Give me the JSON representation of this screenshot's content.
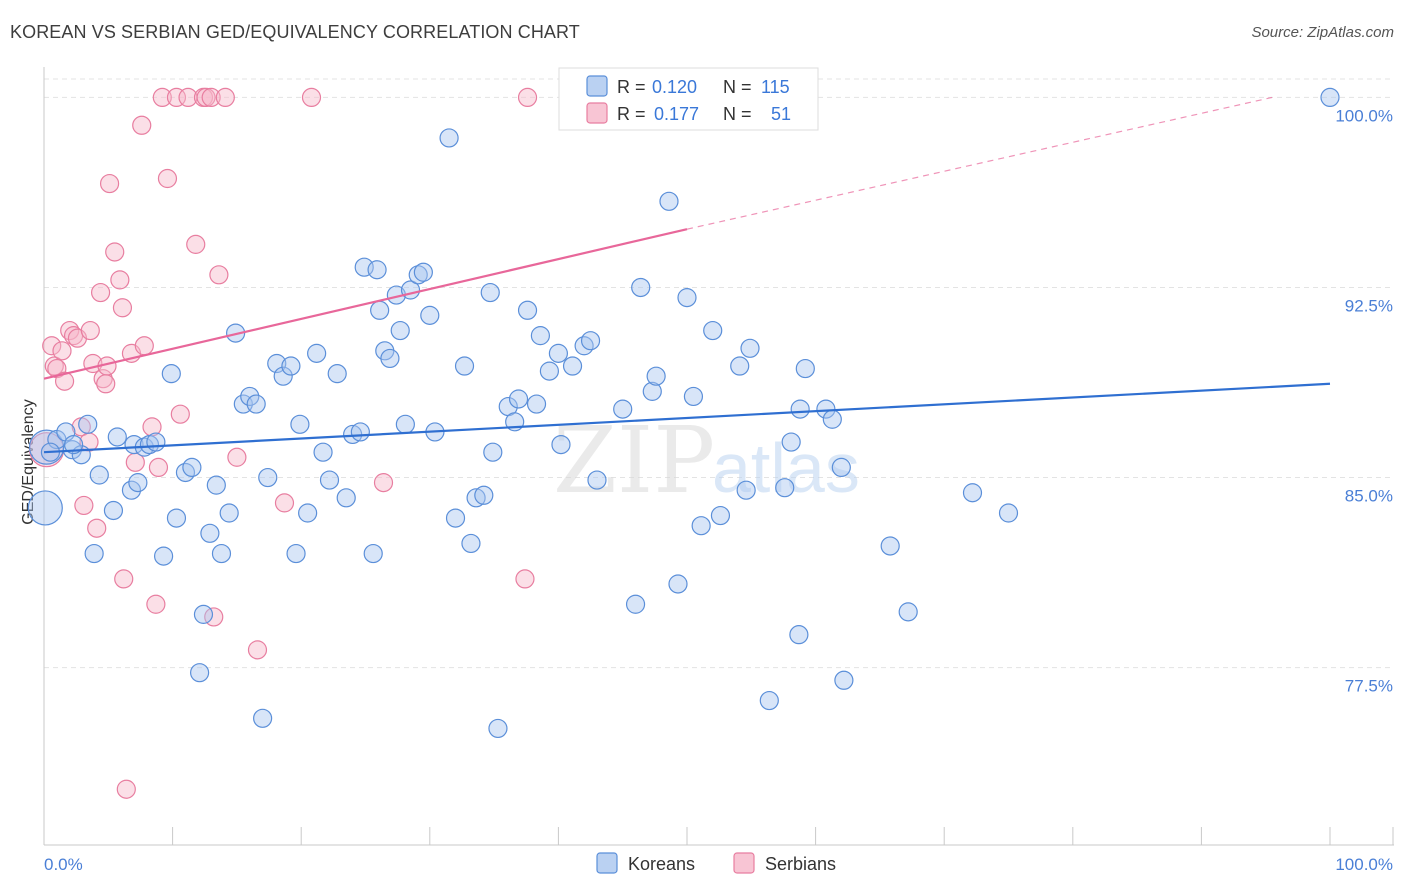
{
  "title": "KOREAN VS SERBIAN GED/EQUIVALENCY CORRELATION CHART",
  "source": "Source: ZipAtlas.com",
  "watermark": {
    "zip": "ZIP",
    "atlas": "atlas"
  },
  "legend_top": {
    "korean": {
      "r_label": "R =",
      "r_value": "0.120",
      "n_label": "N =",
      "n_value": "115"
    },
    "serbian": {
      "r_label": "R =",
      "r_value": "0.177",
      "n_label": "N =",
      "n_value": "51"
    }
  },
  "colors": {
    "korean_fill": "#a9c6ef",
    "korean_stroke": "#5b8fd9",
    "korean_line": "#2f6fd1",
    "serbian_fill": "#f6b7c9",
    "serbian_stroke": "#e87ea0",
    "serbian_line": "#e8679a",
    "grid": "#e3e3e3",
    "tick_text": "#4a7fd6"
  },
  "chart_data": {
    "type": "scatter",
    "title": "KOREAN VS SERBIAN GED/EQUIVALENCY CORRELATION CHART",
    "xlabel": "",
    "ylabel": "GED/Equivalency",
    "xlim": [
      0,
      100
    ],
    "ylim": [
      70.5,
      101.2
    ],
    "x_tick_labels": [
      "0.0%",
      "100.0%"
    ],
    "y_ticks": [
      {
        "value": 77.5,
        "label": "77.5%"
      },
      {
        "value": 85.0,
        "label": "85.0%"
      },
      {
        "value": 92.5,
        "label": "92.5%"
      },
      {
        "value": 100.0,
        "label": "100.0%"
      }
    ],
    "series": [
      {
        "name": "Koreans",
        "r": 0.12,
        "n": 115,
        "trend": {
          "x1": 0,
          "y1": 86.0,
          "x2": 100,
          "y2": 88.7
        },
        "points": [
          [
            0.2,
            86.2
          ],
          [
            0.1,
            83.8
          ],
          [
            1.0,
            86.5
          ],
          [
            1.7,
            86.8
          ],
          [
            2.2,
            86.1
          ],
          [
            2.9,
            85.9
          ],
          [
            3.4,
            87.1
          ],
          [
            3.9,
            82.0
          ],
          [
            4.3,
            85.1
          ],
          [
            5.4,
            83.7
          ],
          [
            5.7,
            86.6
          ],
          [
            6.8,
            84.5
          ],
          [
            7.0,
            86.3
          ],
          [
            7.3,
            84.8
          ],
          [
            7.8,
            86.2
          ],
          [
            8.2,
            86.3
          ],
          [
            8.7,
            86.4
          ],
          [
            9.3,
            81.9
          ],
          [
            9.9,
            89.1
          ],
          [
            10.3,
            83.4
          ],
          [
            11.0,
            85.2
          ],
          [
            11.5,
            85.4
          ],
          [
            12.1,
            77.3
          ],
          [
            12.4,
            79.6
          ],
          [
            12.9,
            82.8
          ],
          [
            13.4,
            84.7
          ],
          [
            13.8,
            82.0
          ],
          [
            14.4,
            83.6
          ],
          [
            14.9,
            90.7
          ],
          [
            15.5,
            87.9
          ],
          [
            16.0,
            88.2
          ],
          [
            16.5,
            87.9
          ],
          [
            17.0,
            75.5
          ],
          [
            17.4,
            85.0
          ],
          [
            18.1,
            89.5
          ],
          [
            18.6,
            89.0
          ],
          [
            19.2,
            89.4
          ],
          [
            19.6,
            82.0
          ],
          [
            19.9,
            87.1
          ],
          [
            20.5,
            83.6
          ],
          [
            21.2,
            89.9
          ],
          [
            21.7,
            86.0
          ],
          [
            22.2,
            84.9
          ],
          [
            22.8,
            89.1
          ],
          [
            23.5,
            84.2
          ],
          [
            24.0,
            86.7
          ],
          [
            24.6,
            86.8
          ],
          [
            24.9,
            93.3
          ],
          [
            25.6,
            82.0
          ],
          [
            25.9,
            93.2
          ],
          [
            26.1,
            91.6
          ],
          [
            26.5,
            90.0
          ],
          [
            26.9,
            89.7
          ],
          [
            27.4,
            92.2
          ],
          [
            27.7,
            90.8
          ],
          [
            28.1,
            87.1
          ],
          [
            28.5,
            92.4
          ],
          [
            29.1,
            93.0
          ],
          [
            29.5,
            93.1
          ],
          [
            30.0,
            91.4
          ],
          [
            30.4,
            86.8
          ],
          [
            31.5,
            98.4
          ],
          [
            32.0,
            83.4
          ],
          [
            32.7,
            89.4
          ],
          [
            33.2,
            82.4
          ],
          [
            33.6,
            84.2
          ],
          [
            34.2,
            84.3
          ],
          [
            34.7,
            92.3
          ],
          [
            34.9,
            86.0
          ],
          [
            35.3,
            75.1
          ],
          [
            36.1,
            87.8
          ],
          [
            36.6,
            87.2
          ],
          [
            36.9,
            88.1
          ],
          [
            37.6,
            91.6
          ],
          [
            38.3,
            87.9
          ],
          [
            38.6,
            90.6
          ],
          [
            39.3,
            89.2
          ],
          [
            40.0,
            89.9
          ],
          [
            40.2,
            86.3
          ],
          [
            41.1,
            89.4
          ],
          [
            42.0,
            90.2
          ],
          [
            42.5,
            90.4
          ],
          [
            43.0,
            84.9
          ],
          [
            45.0,
            87.7
          ],
          [
            46.0,
            80.0
          ],
          [
            46.4,
            92.5
          ],
          [
            47.3,
            88.4
          ],
          [
            47.6,
            89.0
          ],
          [
            48.6,
            95.9
          ],
          [
            49.3,
            80.8
          ],
          [
            50.0,
            92.1
          ],
          [
            50.5,
            88.2
          ],
          [
            51.1,
            83.1
          ],
          [
            52.0,
            90.8
          ],
          [
            52.6,
            83.5
          ],
          [
            54.1,
            89.4
          ],
          [
            54.6,
            84.5
          ],
          [
            54.9,
            90.1
          ],
          [
            56.4,
            76.2
          ],
          [
            57.6,
            84.6
          ],
          [
            58.1,
            86.4
          ],
          [
            58.7,
            78.8
          ],
          [
            58.8,
            87.7
          ],
          [
            59.2,
            89.3
          ],
          [
            60.8,
            87.7
          ],
          [
            61.3,
            87.3
          ],
          [
            62.0,
            85.4
          ],
          [
            62.2,
            77.0
          ],
          [
            65.8,
            82.3
          ],
          [
            67.2,
            79.7
          ],
          [
            72.2,
            84.4
          ],
          [
            75.0,
            83.6
          ],
          [
            100.0,
            100.0
          ],
          [
            0.5,
            86.0
          ],
          [
            2.3,
            86.3
          ]
        ]
      },
      {
        "name": "Serbians",
        "r": 0.177,
        "n": 51,
        "trend": {
          "x1": 0,
          "y1": 88.9,
          "x2": 50,
          "y2": 94.8,
          "dash_x2": 95.5,
          "dash_y2": 100.0
        },
        "points": [
          [
            0.2,
            86.1
          ],
          [
            0.6,
            90.2
          ],
          [
            0.8,
            89.4
          ],
          [
            1.0,
            89.3
          ],
          [
            1.4,
            90.0
          ],
          [
            1.6,
            88.8
          ],
          [
            2.0,
            90.8
          ],
          [
            2.3,
            90.6
          ],
          [
            2.6,
            90.5
          ],
          [
            2.9,
            87.0
          ],
          [
            3.1,
            83.9
          ],
          [
            3.5,
            86.4
          ],
          [
            3.6,
            90.8
          ],
          [
            3.8,
            89.5
          ],
          [
            4.1,
            83.0
          ],
          [
            4.4,
            92.3
          ],
          [
            4.6,
            88.9
          ],
          [
            4.8,
            88.7
          ],
          [
            4.9,
            89.4
          ],
          [
            5.1,
            96.6
          ],
          [
            5.5,
            93.9
          ],
          [
            5.9,
            92.8
          ],
          [
            6.1,
            91.7
          ],
          [
            6.2,
            81.0
          ],
          [
            6.4,
            72.7
          ],
          [
            6.8,
            89.9
          ],
          [
            7.1,
            85.6
          ],
          [
            7.6,
            98.9
          ],
          [
            7.8,
            90.2
          ],
          [
            8.4,
            87.0
          ],
          [
            8.7,
            80.0
          ],
          [
            8.9,
            85.4
          ],
          [
            9.2,
            100.0
          ],
          [
            9.6,
            96.8
          ],
          [
            10.3,
            100.0
          ],
          [
            10.6,
            87.5
          ],
          [
            11.2,
            100.0
          ],
          [
            11.8,
            94.2
          ],
          [
            12.4,
            100.0
          ],
          [
            12.6,
            100.0
          ],
          [
            13.0,
            100.0
          ],
          [
            13.2,
            79.5
          ],
          [
            13.6,
            93.0
          ],
          [
            14.1,
            100.0
          ],
          [
            15.0,
            85.8
          ],
          [
            16.6,
            78.2
          ],
          [
            18.7,
            84.0
          ],
          [
            20.8,
            100.0
          ],
          [
            26.4,
            84.8
          ],
          [
            37.4,
            81.0
          ],
          [
            37.6,
            100.0
          ]
        ]
      }
    ]
  },
  "legend_bottom": [
    {
      "name": "Koreans"
    },
    {
      "name": "Serbians"
    }
  ]
}
